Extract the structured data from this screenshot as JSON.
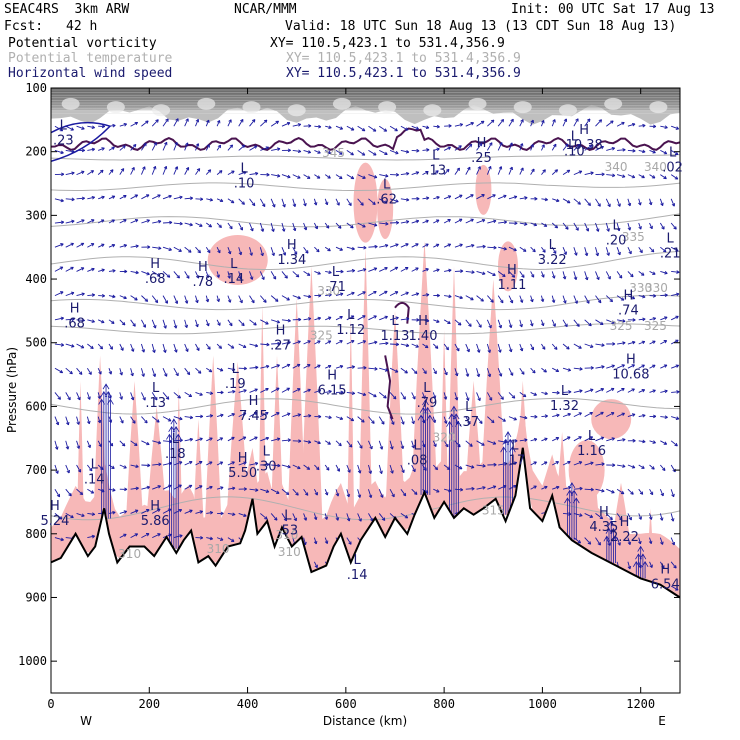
{
  "header": {
    "model": "SEAC4RS  3km ARW",
    "org": "NCAR/MMM",
    "init": "Init: 00 UTC Sat 17 Aug 13",
    "fcst_label": "Fcst:",
    "fcst_value": "42 h",
    "valid": "Valid: 18 UTC Sun 18 Aug 13 (13 CDT Sun 18 Aug 13)",
    "fields": [
      {
        "name": "Potential vorticity",
        "xy": "XY= 110.5,423.1 to 531.4,356.9"
      },
      {
        "name": "Potential temperature",
        "xy": "XY= 110.5,423.1 to 531.4,356.9"
      },
      {
        "name": "Horizontal wind speed",
        "xy": "XY= 110.5,423.1 to 531.4,356.9"
      }
    ]
  },
  "colors": {
    "pv_shade": "#f7b8b8",
    "pv_contour": "#4a1450",
    "theta": "#b0b0b0",
    "wind": "#1a1aa0",
    "terrain": "#000000",
    "label_text": "#1a1a6e"
  },
  "chart_data": {
    "type": "cross-section",
    "xlabel": "Distance (km)",
    "ylabel": "Pressure (hPa)",
    "xlim": [
      0,
      1280
    ],
    "ylim": [
      1050,
      100
    ],
    "x_ticks": [
      0,
      200,
      400,
      600,
      800,
      1000,
      1200
    ],
    "y_ticks": [
      100,
      200,
      300,
      400,
      500,
      600,
      700,
      800,
      900,
      1000
    ],
    "x_end_labels": {
      "left": "W",
      "right": "E"
    },
    "terrain": [
      [
        0,
        845
      ],
      [
        20,
        838
      ],
      [
        50,
        800
      ],
      [
        75,
        835
      ],
      [
        90,
        820
      ],
      [
        108,
        760
      ],
      [
        118,
        800
      ],
      [
        135,
        845
      ],
      [
        160,
        820
      ],
      [
        190,
        820
      ],
      [
        210,
        835
      ],
      [
        235,
        805
      ],
      [
        255,
        830
      ],
      [
        270,
        810
      ],
      [
        285,
        795
      ],
      [
        300,
        845
      ],
      [
        320,
        835
      ],
      [
        335,
        850
      ],
      [
        360,
        820
      ],
      [
        385,
        815
      ],
      [
        395,
        795
      ],
      [
        410,
        745
      ],
      [
        420,
        800
      ],
      [
        440,
        780
      ],
      [
        455,
        820
      ],
      [
        470,
        790
      ],
      [
        490,
        820
      ],
      [
        510,
        805
      ],
      [
        530,
        860
      ],
      [
        560,
        850
      ],
      [
        575,
        820
      ],
      [
        590,
        800
      ],
      [
        610,
        845
      ],
      [
        630,
        810
      ],
      [
        660,
        775
      ],
      [
        680,
        805
      ],
      [
        700,
        775
      ],
      [
        725,
        800
      ],
      [
        740,
        770
      ],
      [
        760,
        735
      ],
      [
        780,
        775
      ],
      [
        800,
        750
      ],
      [
        820,
        775
      ],
      [
        840,
        760
      ],
      [
        860,
        770
      ],
      [
        880,
        760
      ],
      [
        905,
        745
      ],
      [
        925,
        780
      ],
      [
        945,
        740
      ],
      [
        960,
        665
      ],
      [
        975,
        760
      ],
      [
        1000,
        780
      ],
      [
        1020,
        740
      ],
      [
        1035,
        790
      ],
      [
        1060,
        810
      ],
      [
        1100,
        830
      ],
      [
        1150,
        850
      ],
      [
        1200,
        870
      ],
      [
        1240,
        880
      ],
      [
        1280,
        900
      ]
    ],
    "hl_labels": [
      {
        "t": "H",
        "x": 8,
        "p": 775,
        "v": "5.24"
      },
      {
        "t": "L",
        "x": 25,
        "p": 178,
        "v": ".23"
      },
      {
        "t": "H",
        "x": 48,
        "p": 465,
        "v": ".68"
      },
      {
        "t": "L",
        "x": 88,
        "p": 710,
        "v": ".14"
      },
      {
        "t": "L",
        "x": 213,
        "p": 590,
        "v": ".13"
      },
      {
        "t": "H",
        "x": 212,
        "p": 775,
        "v": "5.86"
      },
      {
        "t": "H",
        "x": 212,
        "p": 395,
        "v": ".68"
      },
      {
        "t": "L",
        "x": 253,
        "p": 670,
        "v": ".18"
      },
      {
        "t": "H",
        "x": 309,
        "p": 400,
        "v": ".78"
      },
      {
        "t": "L",
        "x": 375,
        "p": 560,
        "v": ".19"
      },
      {
        "t": "L",
        "x": 372,
        "p": 395,
        "v": ".14"
      },
      {
        "t": "L",
        "x": 393,
        "p": 245,
        "v": ".10"
      },
      {
        "t": "H",
        "x": 412,
        "p": 610,
        "v": "7.45"
      },
      {
        "t": "H",
        "x": 390,
        "p": 700,
        "v": "5.50"
      },
      {
        "t": "L",
        "x": 438,
        "p": 690,
        "v": ".30"
      },
      {
        "t": "H",
        "x": 467,
        "p": 500,
        "v": ".27"
      },
      {
        "t": "H",
        "x": 490,
        "p": 365,
        "v": "1.34"
      },
      {
        "t": "L",
        "x": 482,
        "p": 790,
        "v": ".53"
      },
      {
        "t": "L",
        "x": 579,
        "p": 408,
        "v": ".71"
      },
      {
        "t": "H",
        "x": 572,
        "p": 570,
        "v": "6.15"
      },
      {
        "t": "L",
        "x": 610,
        "p": 475,
        "v": "1.12"
      },
      {
        "t": "L",
        "x": 700,
        "p": 485,
        "v": "1.13"
      },
      {
        "t": "L",
        "x": 623,
        "p": 860,
        "v": ".14"
      },
      {
        "t": "L",
        "x": 683,
        "p": 270,
        "v": ".62"
      },
      {
        "t": "L",
        "x": 765,
        "p": 590,
        "v": ".79"
      },
      {
        "t": "L",
        "x": 783,
        "p": 225,
        "v": ".13"
      },
      {
        "t": "L",
        "x": 745,
        "p": 680,
        "v": ".08"
      },
      {
        "t": "H",
        "x": 757,
        "p": 485,
        "v": "1.40"
      },
      {
        "t": "L",
        "x": 850,
        "p": 620,
        "v": ".37"
      },
      {
        "t": "H",
        "x": 876,
        "p": 205,
        "v": ".25"
      },
      {
        "t": "H",
        "x": 938,
        "p": 405,
        "v": "1.11"
      },
      {
        "t": "L",
        "x": 944,
        "p": 680,
        "v": ".17"
      },
      {
        "t": "L",
        "x": 1020,
        "p": 365,
        "v": "3.22"
      },
      {
        "t": "L",
        "x": 1045,
        "p": 595,
        "v": "1.32"
      },
      {
        "t": "L",
        "x": 1065,
        "p": 195,
        "v": ".10"
      },
      {
        "t": "H",
        "x": 1085,
        "p": 185,
        "v": "10.38"
      },
      {
        "t": "L",
        "x": 1100,
        "p": 665,
        "v": "1.16"
      },
      {
        "t": "L",
        "x": 1150,
        "p": 335,
        "v": ".20"
      },
      {
        "t": "H",
        "x": 1125,
        "p": 785,
        "v": "4.35"
      },
      {
        "t": "H",
        "x": 1167,
        "p": 800,
        "v": "2.22"
      },
      {
        "t": "H",
        "x": 1175,
        "p": 445,
        "v": ".74"
      },
      {
        "t": "H",
        "x": 1180,
        "p": 545,
        "v": "10.68"
      },
      {
        "t": "L",
        "x": 1265,
        "p": 220,
        "v": ".02"
      },
      {
        "t": "L",
        "x": 1260,
        "p": 355,
        "v": ".21"
      },
      {
        "t": "H",
        "x": 1250,
        "p": 875,
        "v": "6.54"
      }
    ],
    "theta_labels": [
      {
        "x": 1150,
        "p": 230,
        "v": "340"
      },
      {
        "x": 1230,
        "p": 230,
        "v": "340"
      },
      {
        "x": 575,
        "p": 208,
        "v": "345"
      },
      {
        "x": 1185,
        "p": 340,
        "v": "335"
      },
      {
        "x": 565,
        "p": 425,
        "v": "330"
      },
      {
        "x": 1200,
        "p": 420,
        "v": "330"
      },
      {
        "x": 1232,
        "p": 420,
        "v": "330"
      },
      {
        "x": 550,
        "p": 495,
        "v": "325"
      },
      {
        "x": 1160,
        "p": 480,
        "v": "325"
      },
      {
        "x": 1230,
        "p": 480,
        "v": "325"
      },
      {
        "x": 800,
        "p": 655,
        "v": "320"
      },
      {
        "x": 900,
        "p": 770,
        "v": "315"
      },
      {
        "x": 160,
        "p": 838,
        "v": "310"
      },
      {
        "x": 340,
        "p": 830,
        "v": "310"
      },
      {
        "x": 480,
        "p": 808,
        "v": "310"
      },
      {
        "x": 485,
        "p": 835,
        "v": "310"
      }
    ]
  }
}
